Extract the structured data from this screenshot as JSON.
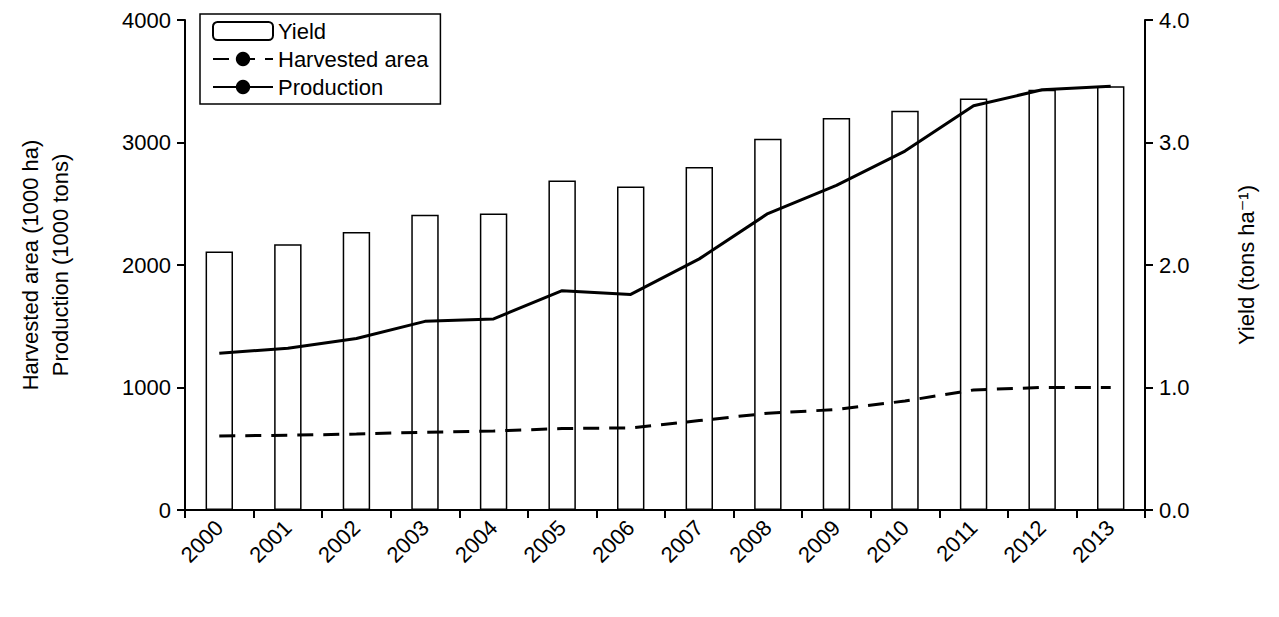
{
  "chart_data": {
    "type": "bar",
    "categories": [
      "2000",
      "2001",
      "2002",
      "2003",
      "2004",
      "2005",
      "2006",
      "2007",
      "2008",
      "2009",
      "2010",
      "2011",
      "2012",
      "2013"
    ],
    "ylabel": [
      "Harvested area (1000 ha)",
      "Production (1000 tons)"
    ],
    "y2label": "Yield (tons ha⁻¹)",
    "ylim": [
      0,
      4000
    ],
    "yticks": [
      0,
      1000,
      2000,
      3000,
      4000
    ],
    "y2lim": [
      0,
      4
    ],
    "y2ticks": [
      {
        "value": 0,
        "label": "0.0"
      },
      {
        "value": 1,
        "label": "1.0"
      },
      {
        "value": 2,
        "label": "2.0"
      },
      {
        "value": 3,
        "label": "3.0"
      },
      {
        "value": 4,
        "label": "4.0"
      }
    ],
    "grid": false,
    "legend": "upper left",
    "series": [
      {
        "name": "Yield",
        "type": "bar",
        "axis": "y2",
        "color": "#ffffff",
        "values": [
          2.11,
          2.17,
          2.27,
          2.41,
          2.42,
          2.69,
          2.64,
          2.8,
          3.03,
          3.2,
          3.26,
          3.36,
          3.43,
          3.46
        ]
      },
      {
        "name": "Harvested area",
        "type": "line",
        "color": "#000000",
        "line_style": "dashed",
        "values": [
          605,
          610,
          620,
          635,
          645,
          665,
          670,
          730,
          790,
          820,
          890,
          980,
          1000,
          1000
        ]
      },
      {
        "name": "Production",
        "type": "line",
        "color": "#000000",
        "line_style": "solid",
        "values": [
          1280,
          1320,
          1400,
          1540,
          1560,
          1790,
          1760,
          2050,
          2420,
          2650,
          2930,
          3300,
          3430,
          3460
        ]
      }
    ]
  }
}
